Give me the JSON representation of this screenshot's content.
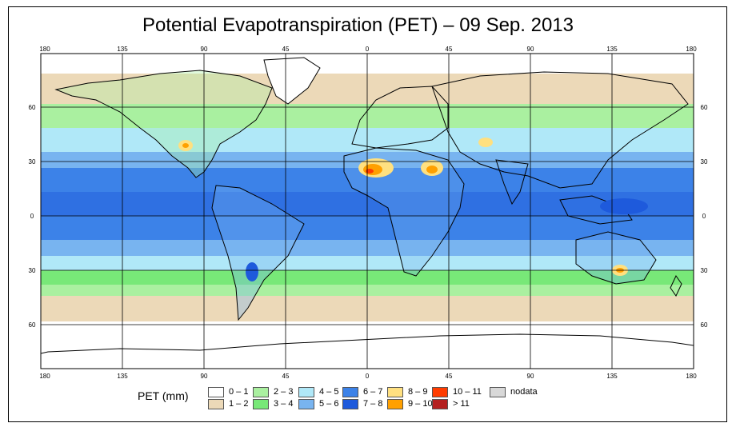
{
  "title": "Potential Evapotranspiration (PET) – 09 Sep. 2013",
  "axes": {
    "lon_ticks": [
      "180",
      "135",
      "90",
      "45",
      "0",
      "45",
      "90",
      "135",
      "180"
    ],
    "lat_ticks": [
      "60",
      "30",
      "0",
      "30",
      "60"
    ]
  },
  "legend": {
    "title": "PET (mm)",
    "items": [
      {
        "label": "0 – 1",
        "color": "#ffffff"
      },
      {
        "label": "1 – 2",
        "color": "#ecd9b8"
      },
      {
        "label": "2 – 3",
        "color": "#aaf0a0"
      },
      {
        "label": "3 – 4",
        "color": "#78e878"
      },
      {
        "label": "4 – 5",
        "color": "#b0e8f8"
      },
      {
        "label": "5 – 6",
        "color": "#78b4f0"
      },
      {
        "label": "6 – 7",
        "color": "#3c82e8"
      },
      {
        "label": "7 – 8",
        "color": "#1e5adc"
      },
      {
        "label": "8 – 9",
        "color": "#ffe080"
      },
      {
        "label": "9 – 10",
        "color": "#ffa000"
      },
      {
        "label": "10 – 11",
        "color": "#ff3c00"
      },
      {
        "label": "> 11",
        "color": "#b42020"
      },
      {
        "label": "nodata",
        "color": "#d8d8d8"
      }
    ]
  }
}
